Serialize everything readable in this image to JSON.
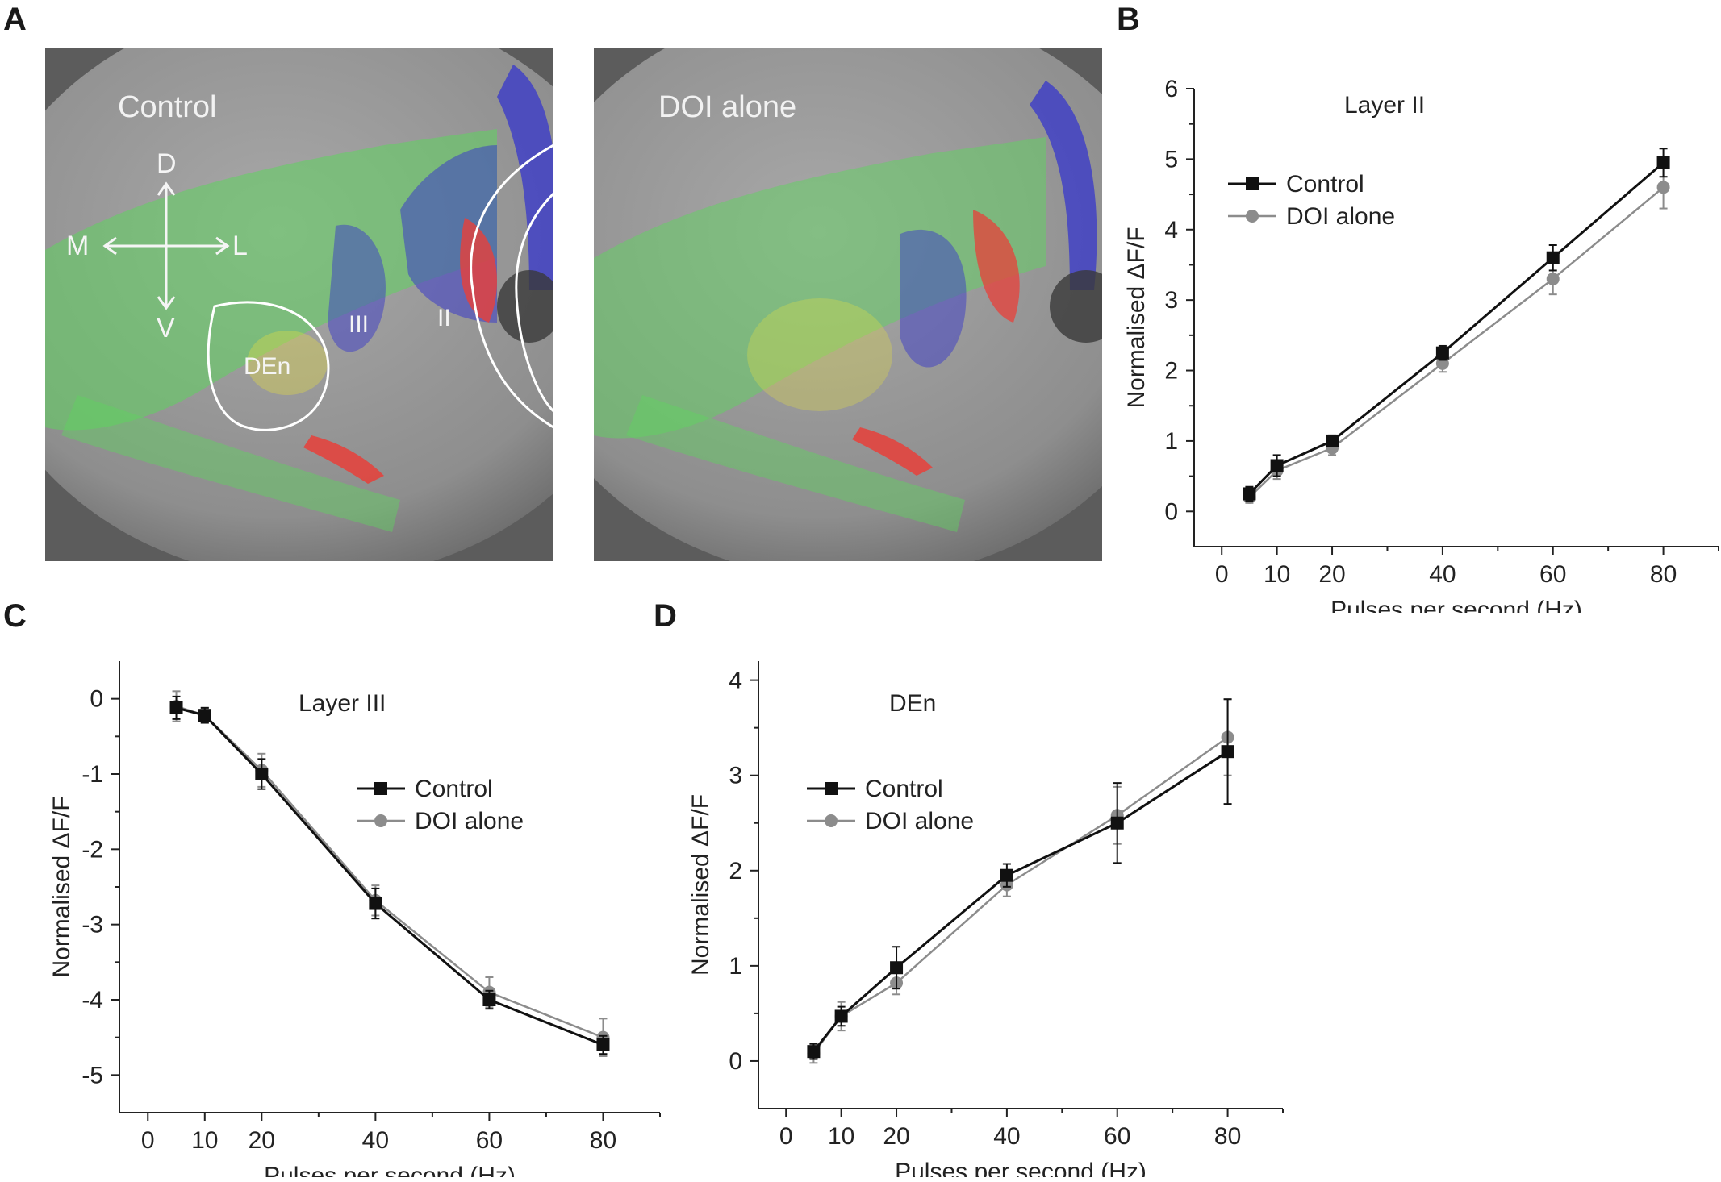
{
  "panel_labels": {
    "a": "A",
    "b": "B",
    "c": "C",
    "d": "D"
  },
  "images": {
    "left_label": "Control",
    "right_label": "DOI alone",
    "compass": {
      "dorsal": "D",
      "ventral": "V",
      "medial": "M",
      "lateral": "L"
    },
    "regions": {
      "den": "DEn",
      "layer3": "III",
      "layer2": "II"
    },
    "colors": {
      "bg": "#8a8a8a",
      "green": "#5fd35f",
      "blue": "#3c3cc8",
      "red": "#e8403a",
      "yellow": "#e8e040"
    }
  },
  "chart_data": [
    {
      "id": "B",
      "type": "line",
      "title": "Layer II",
      "xlabel": "Pulses per second (Hz)",
      "ylabel": "Normalised ΔF/F",
      "xlim": [
        -5,
        90
      ],
      "ylim": [
        -0.5,
        6
      ],
      "xticks": [
        0,
        10,
        20,
        40,
        60,
        80
      ],
      "yticks": [
        0,
        1,
        2,
        3,
        4,
        5,
        6
      ],
      "x": [
        5,
        10,
        20,
        40,
        60,
        80
      ],
      "series": [
        {
          "name": "Control",
          "color": "#111111",
          "marker": "square",
          "values": [
            0.25,
            0.65,
            1.0,
            2.25,
            3.6,
            4.95
          ],
          "errors": [
            0.1,
            0.15,
            0.08,
            0.1,
            0.18,
            0.2
          ]
        },
        {
          "name": "DOI alone",
          "color": "#8c8c8c",
          "marker": "circle",
          "values": [
            0.2,
            0.58,
            0.9,
            2.1,
            3.3,
            4.6
          ],
          "errors": [
            0.08,
            0.12,
            0.1,
            0.12,
            0.22,
            0.3
          ]
        }
      ],
      "legend_position": "top-left"
    },
    {
      "id": "C",
      "type": "line",
      "title": "Layer III",
      "xlabel": "Pulses per second (Hz)",
      "ylabel": "Normalised ΔF/F",
      "xlim": [
        -5,
        90
      ],
      "ylim": [
        -5.5,
        0.5
      ],
      "xticks": [
        0,
        10,
        20,
        40,
        60,
        80
      ],
      "yticks": [
        0,
        -1,
        -2,
        -3,
        -4,
        -5
      ],
      "x": [
        5,
        10,
        20,
        40,
        60,
        80
      ],
      "series": [
        {
          "name": "Control",
          "color": "#111111",
          "marker": "square",
          "values": [
            -0.12,
            -0.22,
            -1.0,
            -2.72,
            -4.0,
            -4.6
          ],
          "errors": [
            0.15,
            0.1,
            0.2,
            0.2,
            0.12,
            0.12
          ]
        },
        {
          "name": "DOI alone",
          "color": "#8c8c8c",
          "marker": "circle",
          "values": [
            -0.1,
            -0.22,
            -0.95,
            -2.68,
            -3.9,
            -4.5
          ],
          "errors": [
            0.2,
            0.1,
            0.22,
            0.2,
            0.2,
            0.25
          ]
        }
      ],
      "legend_position": "center-right"
    },
    {
      "id": "D",
      "type": "line",
      "title": "DEn",
      "xlabel": "Pulses per second (Hz)",
      "ylabel": "Normalised ΔF/F",
      "xlim": [
        -5,
        90
      ],
      "ylim": [
        -0.5,
        4.2
      ],
      "xticks": [
        0,
        10,
        20,
        40,
        60,
        80
      ],
      "yticks": [
        0,
        1,
        2,
        3,
        4
      ],
      "x": [
        5,
        10,
        20,
        40,
        60,
        80
      ],
      "series": [
        {
          "name": "Control",
          "color": "#111111",
          "marker": "square",
          "values": [
            0.1,
            0.47,
            0.98,
            1.95,
            2.5,
            3.25
          ],
          "errors": [
            0.08,
            0.1,
            0.22,
            0.12,
            0.42,
            0.55
          ]
        },
        {
          "name": "DOI alone",
          "color": "#8c8c8c",
          "marker": "circle",
          "values": [
            0.08,
            0.47,
            0.82,
            1.85,
            2.58,
            3.4
          ],
          "errors": [
            0.1,
            0.15,
            0.12,
            0.12,
            0.3,
            0.4
          ]
        }
      ],
      "legend_position": "top-left"
    }
  ]
}
